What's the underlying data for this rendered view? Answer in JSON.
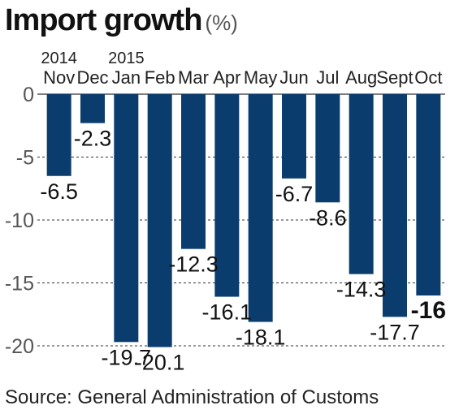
{
  "title": "Import growth",
  "unit": "(%)",
  "source": "Source: General Administration of Customs",
  "year_labels": [
    {
      "category_index": 0,
      "text": "2014"
    },
    {
      "category_index": 2,
      "text": "2015"
    }
  ],
  "colors": {
    "bar": "#0b3c6e",
    "grid": "#333333",
    "text": "#222222"
  },
  "chart_data": {
    "type": "bar",
    "categories": [
      "Nov",
      "Dec",
      "Jan",
      "Feb",
      "Mar",
      "Apr",
      "May",
      "Jun",
      "Jul",
      "Aug",
      "Sept",
      "Oct"
    ],
    "values": [
      -6.5,
      -2.3,
      -19.7,
      -20.1,
      -12.3,
      -16.1,
      -18.1,
      -6.7,
      -8.6,
      -14.3,
      -17.7,
      -16
    ],
    "data_labels": [
      "-6.5",
      "-2.3",
      "-19.7",
      "-20.1",
      "-12.3",
      "-16.1",
      "-18.1",
      "-6.7",
      "-8.6",
      "-14.3",
      "-17.7",
      "-16"
    ],
    "highlight_index": 11,
    "yticks": [
      0,
      -5,
      -10,
      -15,
      -20
    ],
    "ytick_labels": [
      "0",
      "-5",
      "-10",
      "-15",
      "-20"
    ],
    "ylim": [
      -20.5,
      0
    ],
    "grid": true,
    "xlabel": "",
    "ylabel": ""
  }
}
